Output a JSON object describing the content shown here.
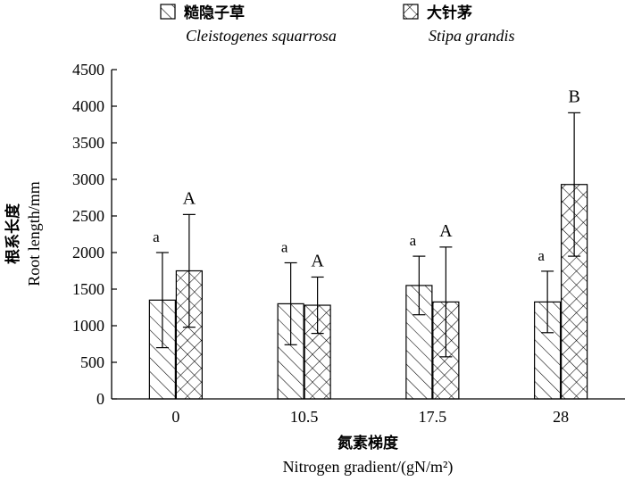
{
  "chart_data": {
    "type": "bar",
    "categories": [
      "0",
      "10.5",
      "17.5",
      "28"
    ],
    "series": [
      {
        "name_zh": "糙隐子草",
        "name_en": "Cleistogenes squarrosa",
        "values": [
          1350,
          1300,
          1550,
          1325
        ],
        "error": [
          650,
          560,
          400,
          420
        ],
        "letters": [
          "a",
          "a",
          "a",
          "a"
        ],
        "pattern": "diagonal-hatch"
      },
      {
        "name_zh": "大针茅",
        "name_en": "Stipa grandis",
        "values": [
          1750,
          1280,
          1325,
          2930
        ],
        "error": [
          770,
          385,
          750,
          980
        ],
        "letters": [
          "A",
          "A",
          "A",
          "B"
        ],
        "pattern": "cross-hatch"
      }
    ],
    "ylabel_zh": "根系长度",
    "ylabel_en": "Root length/mm",
    "xlabel_zh": "氮素梯度",
    "xlabel_en": "Nitrogen gradient/(gN/m²)",
    "ylim": [
      0,
      4500
    ],
    "yticks": [
      0,
      500,
      1000,
      1500,
      2000,
      2500,
      3000,
      3500,
      4000,
      4500
    ],
    "grid": false,
    "legend_position": "top"
  }
}
